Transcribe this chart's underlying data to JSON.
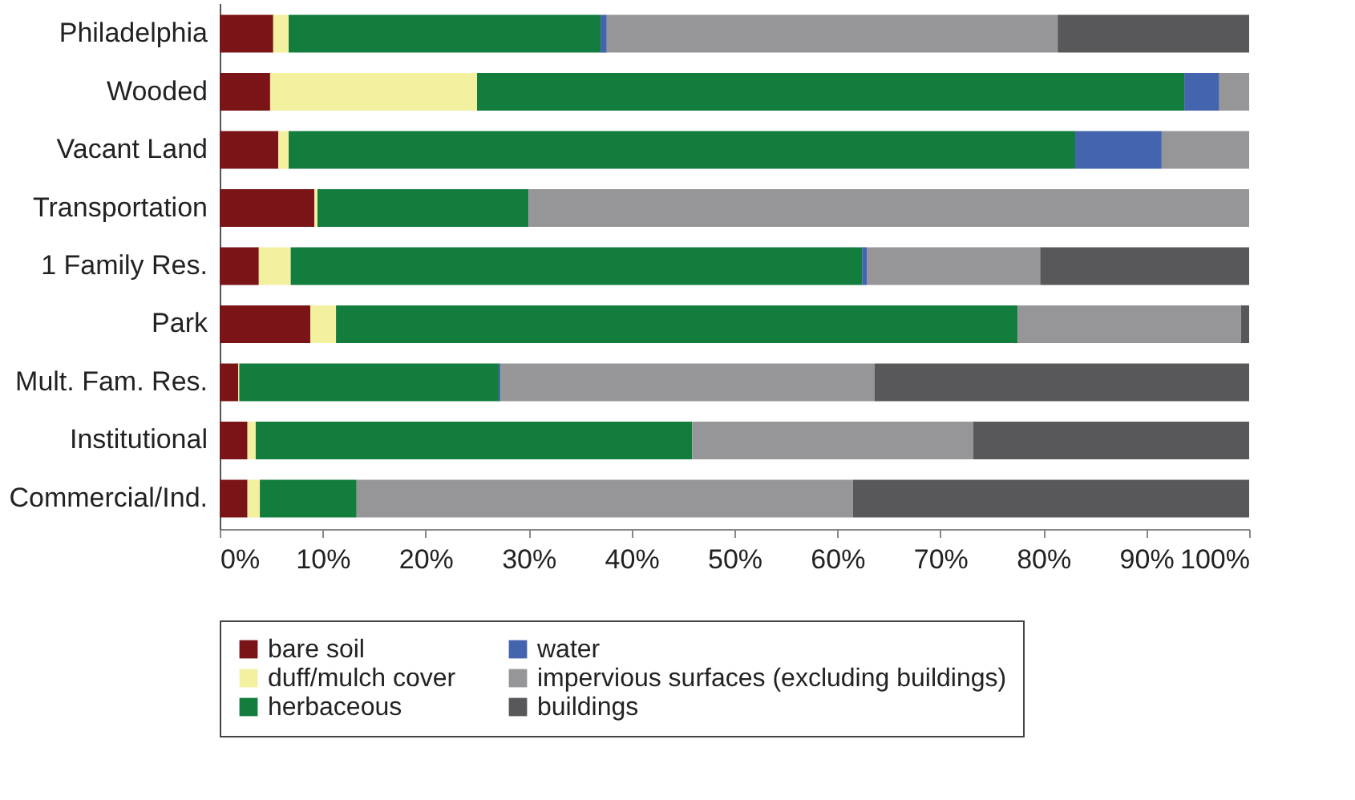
{
  "chart_data": {
    "type": "bar",
    "orientation": "horizontal",
    "stacked": true,
    "categories": [
      "Philadelphia",
      "Wooded",
      "Vacant Land",
      "Transportation",
      "1 Family Res.",
      "Park",
      "Mult. Fam. Res.",
      "Institutional",
      "Commercial/Ind."
    ],
    "series": [
      {
        "name": "bare soil",
        "color": "#7b1416",
        "values": [
          5.2,
          4.9,
          5.7,
          9.2,
          3.8,
          8.8,
          1.8,
          2.7,
          2.7
        ]
      },
      {
        "name": "duff/mulch cover",
        "color": "#f3f09f",
        "values": [
          1.5,
          20.1,
          1.0,
          0.3,
          3.1,
          2.5,
          0.1,
          0.8,
          1.2
        ]
      },
      {
        "name": "herbaceous",
        "color": "#137d3e",
        "values": [
          30.3,
          68.7,
          76.4,
          20.5,
          55.5,
          66.2,
          25.2,
          42.4,
          9.4
        ]
      },
      {
        "name": "water",
        "color": "#4464ae",
        "values": [
          0.6,
          3.4,
          8.4,
          0,
          0.5,
          0,
          0.2,
          0,
          0
        ]
      },
      {
        "name": "impervious surfaces (excluding buildings)",
        "color": "#969699",
        "values": [
          43.8,
          2.9,
          8.5,
          70.0,
          16.8,
          21.7,
          36.3,
          27.3,
          48.2
        ]
      },
      {
        "name": "buildings",
        "color": "#58585a",
        "values": [
          18.6,
          0,
          0,
          0,
          20.3,
          0.8,
          36.4,
          26.8,
          38.5
        ]
      }
    ],
    "xlim": [
      0,
      100
    ],
    "xticks": [
      {
        "value": 0,
        "label": "0%"
      },
      {
        "value": 10,
        "label": "10%"
      },
      {
        "value": 20,
        "label": "20%"
      },
      {
        "value": 30,
        "label": "30%"
      },
      {
        "value": 40,
        "label": "40%"
      },
      {
        "value": 50,
        "label": "50%"
      },
      {
        "value": 60,
        "label": "60%"
      },
      {
        "value": 70,
        "label": "70%"
      },
      {
        "value": 80,
        "label": "80%"
      },
      {
        "value": 90,
        "label": "90%"
      },
      {
        "value": 100,
        "label": "100%"
      }
    ],
    "grid": false,
    "legend": "bottom"
  }
}
